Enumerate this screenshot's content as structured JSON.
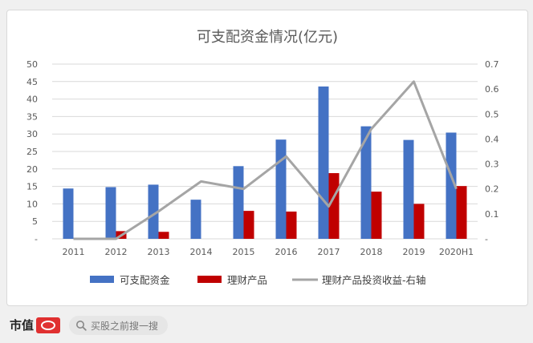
{
  "footer": {
    "brand": "市值",
    "search_text": "买股之前搜一搜"
  },
  "chart_data": {
    "type": "bar",
    "title": "可支配资金情况(亿元)",
    "categories": [
      "2011",
      "2012",
      "2013",
      "2014",
      "2015",
      "2016",
      "2017",
      "2018",
      "2019",
      "2020H1"
    ],
    "y_left": {
      "range": [
        0,
        50
      ],
      "ticks": [
        "-",
        "5",
        "10",
        "15",
        "20",
        "25",
        "30",
        "35",
        "40",
        "45",
        "50"
      ]
    },
    "y_right": {
      "range": [
        0,
        0.7
      ],
      "ticks": [
        "-",
        "0.1",
        "0.2",
        "0.3",
        "0.4",
        "0.5",
        "0.6",
        "0.7"
      ]
    },
    "grid": true,
    "legend_position": "bottom",
    "series": [
      {
        "name": "可支配资金",
        "kind": "bar",
        "axis": "left",
        "color": "#4472c4",
        "values": [
          14.4,
          14.8,
          15.5,
          11.2,
          20.8,
          28.4,
          43.6,
          32.2,
          28.3,
          30.4
        ]
      },
      {
        "name": "理财产品",
        "kind": "bar",
        "axis": "left",
        "color": "#c00000",
        "values": [
          0,
          2.2,
          2.0,
          0,
          8.0,
          7.8,
          18.8,
          13.5,
          10.0,
          15.1
        ]
      },
      {
        "name": "理财产品投资收益-右轴",
        "kind": "line",
        "axis": "right",
        "color": "#a5a5a5",
        "values": [
          0,
          0,
          0.11,
          0.23,
          0.2,
          0.33,
          0.13,
          0.44,
          0.63,
          0.2
        ]
      }
    ]
  }
}
